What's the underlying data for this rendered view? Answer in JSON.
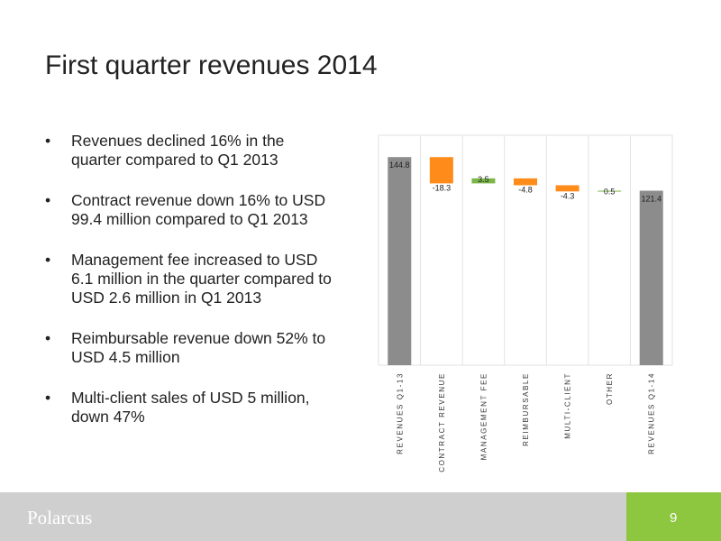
{
  "slide": {
    "title": "First quarter revenues 2014",
    "bullets": [
      "Revenues declined 16% in the quarter compared to Q1 2013",
      "Contract revenue down 16% to USD 99.4 million compared to Q1 2013",
      "Management fee increased to USD 6.1 million in the quarter compared to USD 2.6 million in Q1 2013",
      "Reimbursable revenue down 52% to USD 4.5 million",
      "Multi-client sales of USD 5 million, down 47%"
    ]
  },
  "chart_data": {
    "type": "waterfall",
    "categories": [
      "REVENUES Q1-13",
      "CONTRACT REVENUE",
      "MANAGEMENT FEE",
      "REIMBURSABLE",
      "MULTI-CLIENT",
      "OTHER",
      "REVENUES Q1-14"
    ],
    "values": [
      144.8,
      -18.3,
      3.5,
      -4.8,
      -4.3,
      0.5,
      121.4
    ],
    "totals": [
      true,
      false,
      false,
      false,
      false,
      false,
      true
    ],
    "colors": {
      "total": "#8c8c8c",
      "increase": "#7ab648",
      "decrease": "#ff8c1a"
    },
    "ylim": [
      0,
      160
    ]
  },
  "footer": {
    "logo": "Polarcus",
    "page": "9"
  }
}
